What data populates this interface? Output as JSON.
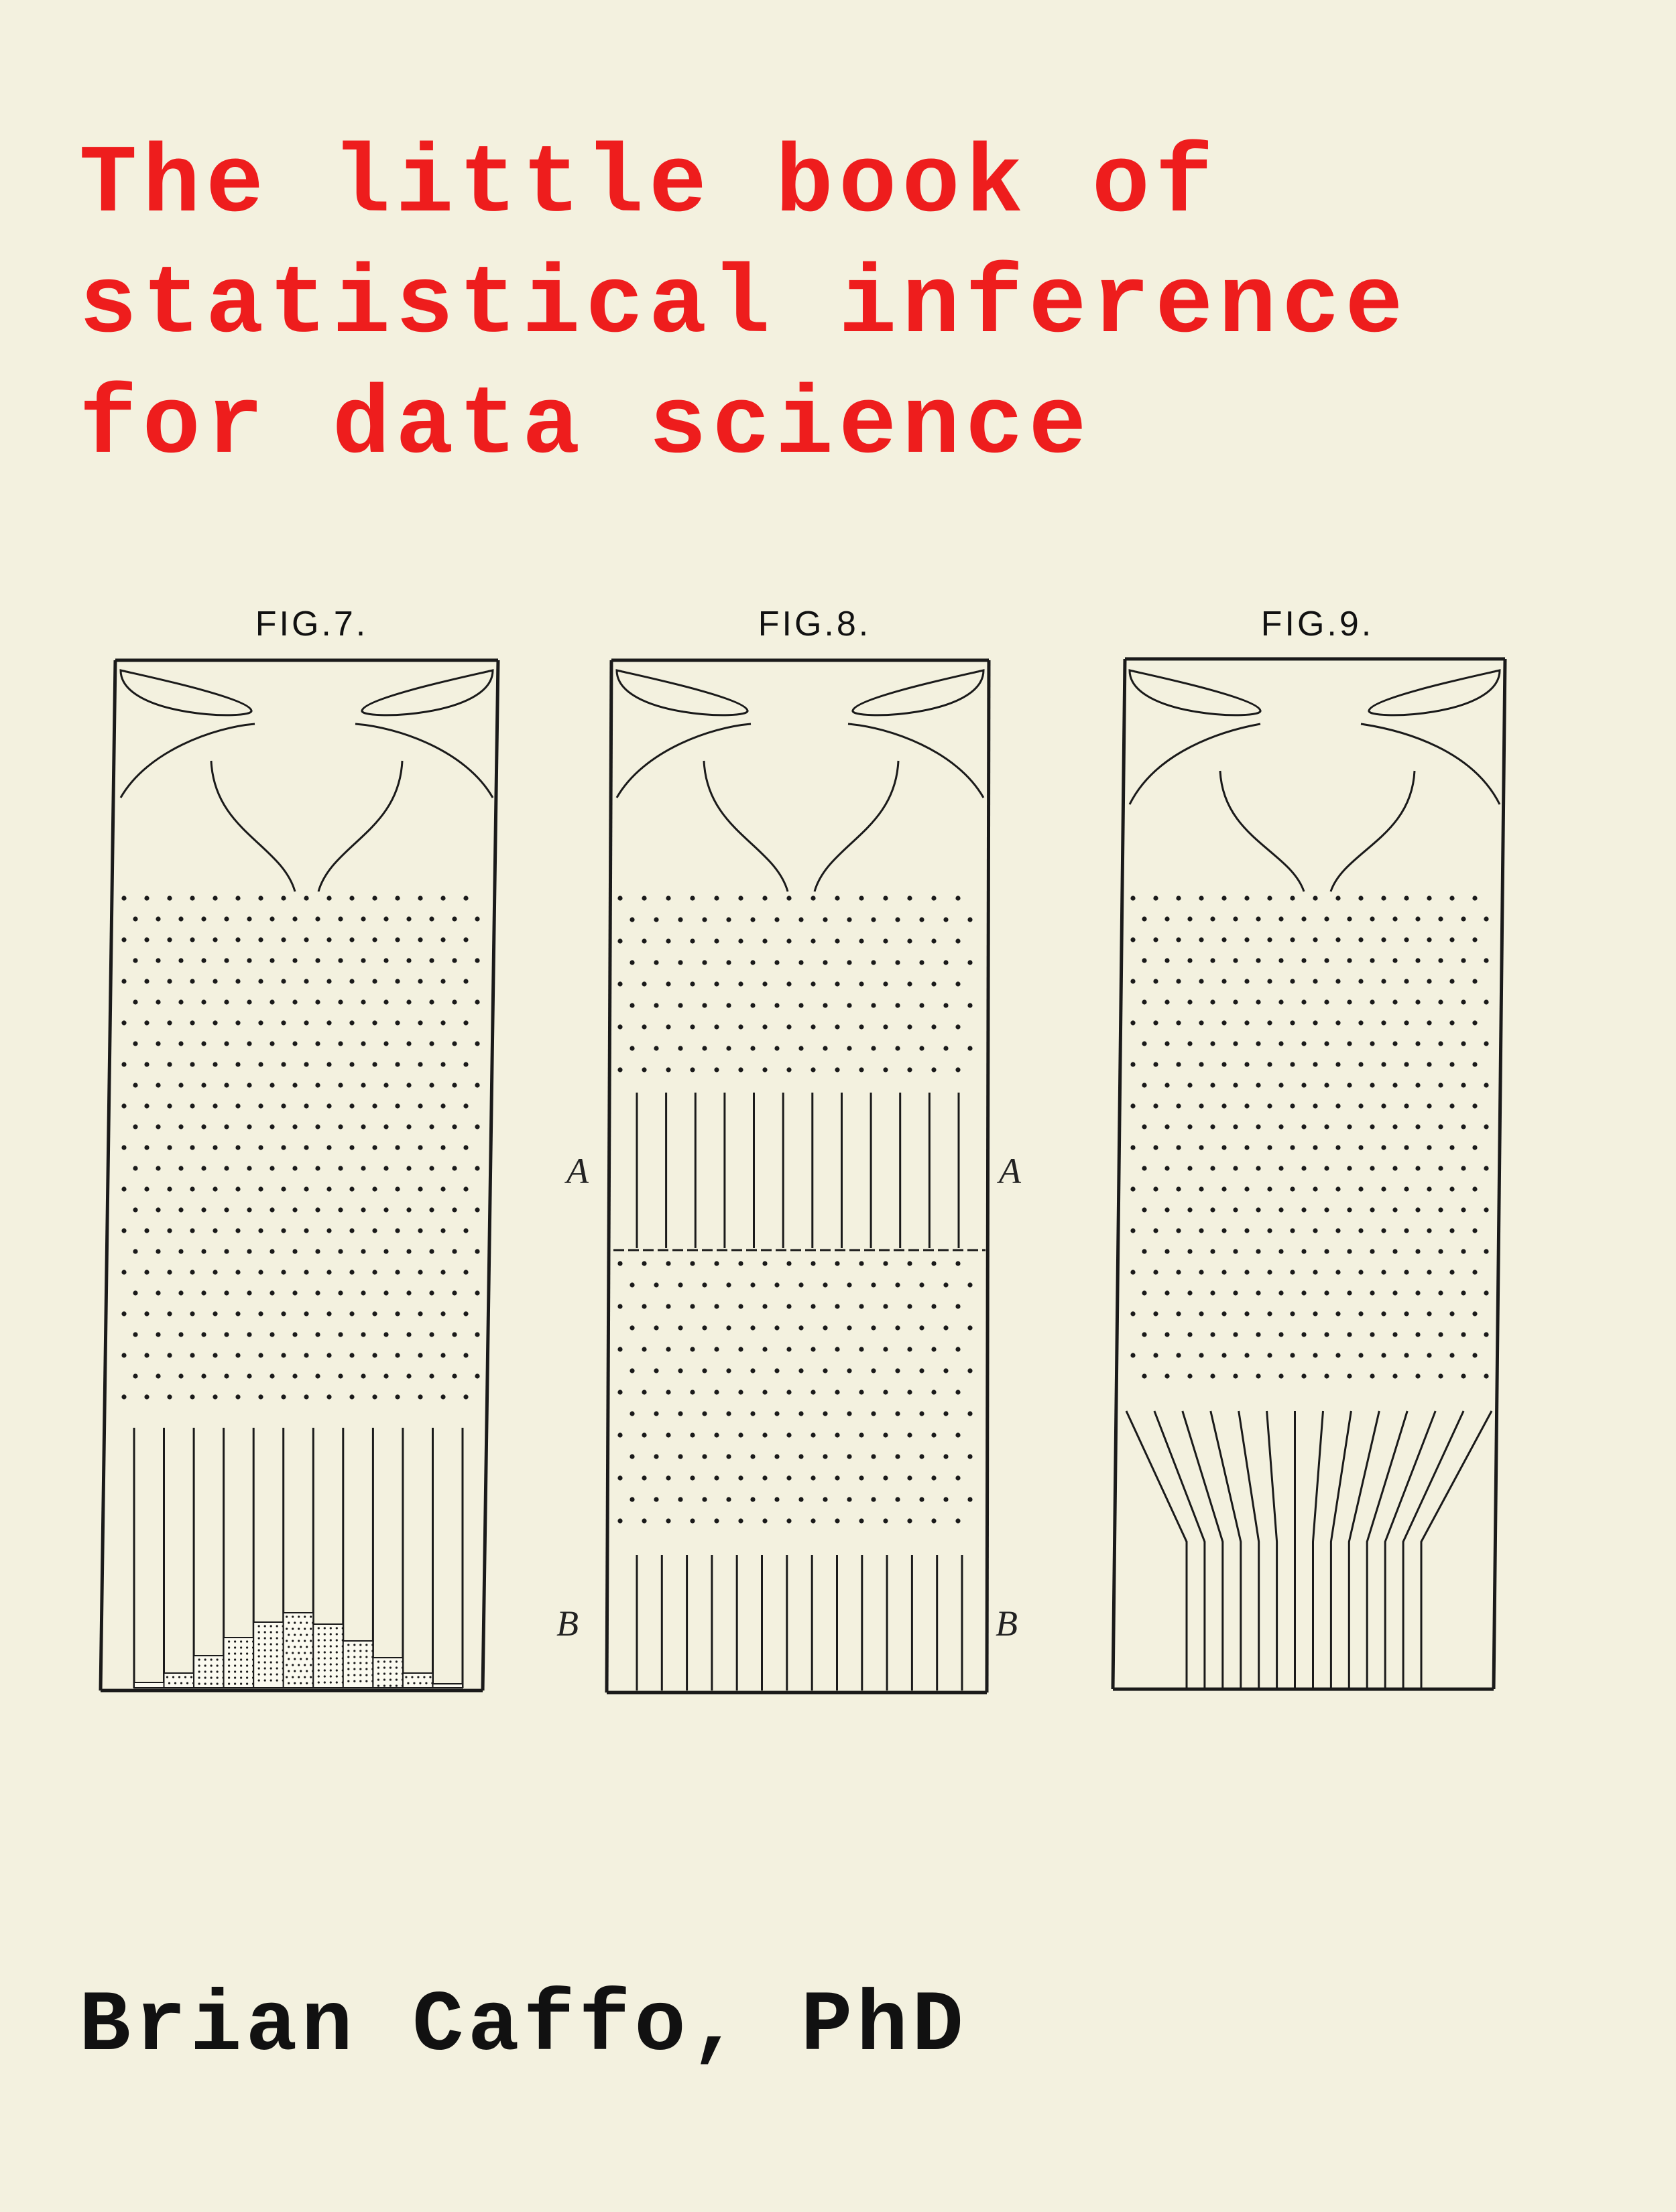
{
  "cover": {
    "title_lines": [
      "The little book of",
      "statistical inference",
      "for data science"
    ],
    "author": "Brian Caffo, PhD",
    "colors": {
      "title": "#ee1d1d",
      "author": "#111111",
      "background": "#f3f1df",
      "ink": "#1a1a1a"
    }
  },
  "figures": [
    {
      "caption": "FIG.7."
    },
    {
      "caption": "FIG.8.",
      "label_a": "A",
      "label_b": "B"
    },
    {
      "caption": "FIG.9."
    }
  ]
}
